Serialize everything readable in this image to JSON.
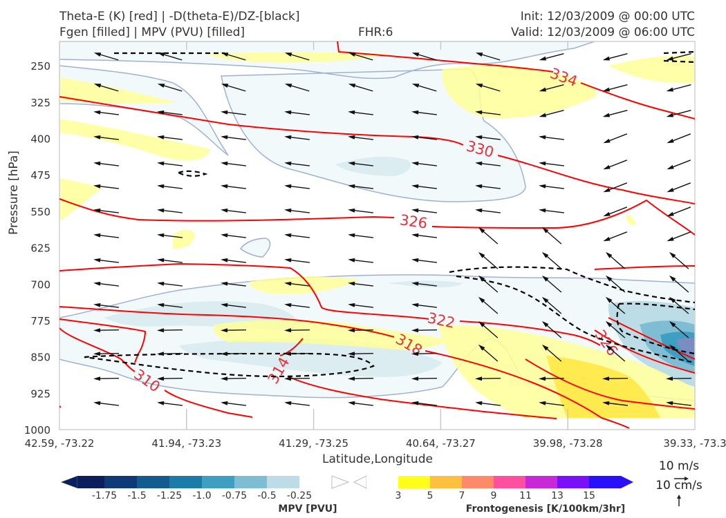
{
  "header": {
    "title_line1": "Theta-E (K) [red] | -D(theta-E)/DZ-[black]",
    "title_line2": "Fgen [filled] | MPV (PVU) [filled]",
    "fhr": "FHR:6",
    "init": "Init: 12/03/2009 @ 00:00 UTC",
    "valid": "Valid: 12/03/2009 @ 06:00 UTC"
  },
  "chart_data": {
    "type": "cross-section",
    "xlabel": "Latitude,Longitude",
    "ylabel": "Pressure [hPa]",
    "x_ticks": [
      "42.59, -73.22",
      "41.94, -73.23",
      "41.29, -73.25",
      "40.64, -73.27",
      "39.98, -73.28",
      "39.33, -73.3"
    ],
    "y_ticks": [
      250,
      325,
      400,
      475,
      550,
      625,
      700,
      775,
      850,
      925,
      1000
    ],
    "ylim": [
      1000,
      200
    ],
    "theta_e_contours": [
      {
        "label": "310",
        "color": "#ff0000"
      },
      {
        "label": "314",
        "color": "#ff0000"
      },
      {
        "label": "318",
        "color": "#ff0000"
      },
      {
        "label": "322",
        "color": "#ff0000"
      },
      {
        "label": "326",
        "color": "#ff0000"
      },
      {
        "label": "326",
        "color": "#ff0000"
      },
      {
        "label": "330",
        "color": "#ff0000"
      },
      {
        "label": "334",
        "color": "#ff0000"
      }
    ],
    "wind_reference": {
      "horizontal": "10 m/s",
      "vertical": "10 cm/s"
    },
    "mpv_colorbar": {
      "label": "MPV [PVU]",
      "ticks": [
        "-1.75",
        "-1.5",
        "-1.25",
        "-1.0",
        "-0.75",
        "-0.5",
        "-0.25"
      ],
      "colors": [
        "#0a1f5c",
        "#0f3a78",
        "#135a8e",
        "#1c7ca8",
        "#3f9fc2",
        "#7fbdd4",
        "#bcdde6",
        "#ffffff"
      ]
    },
    "fgen_colorbar": {
      "label": "Frontogenesis [K/100km/3hr]",
      "ticks": [
        "3",
        "5",
        "7",
        "9",
        "11",
        "13",
        "15"
      ],
      "colors": [
        "#ffffff",
        "#ffff1a",
        "#ffc040",
        "#ff8a68",
        "#ff50a0",
        "#c828d8",
        "#7a10f8",
        "#2a10f8"
      ]
    }
  }
}
